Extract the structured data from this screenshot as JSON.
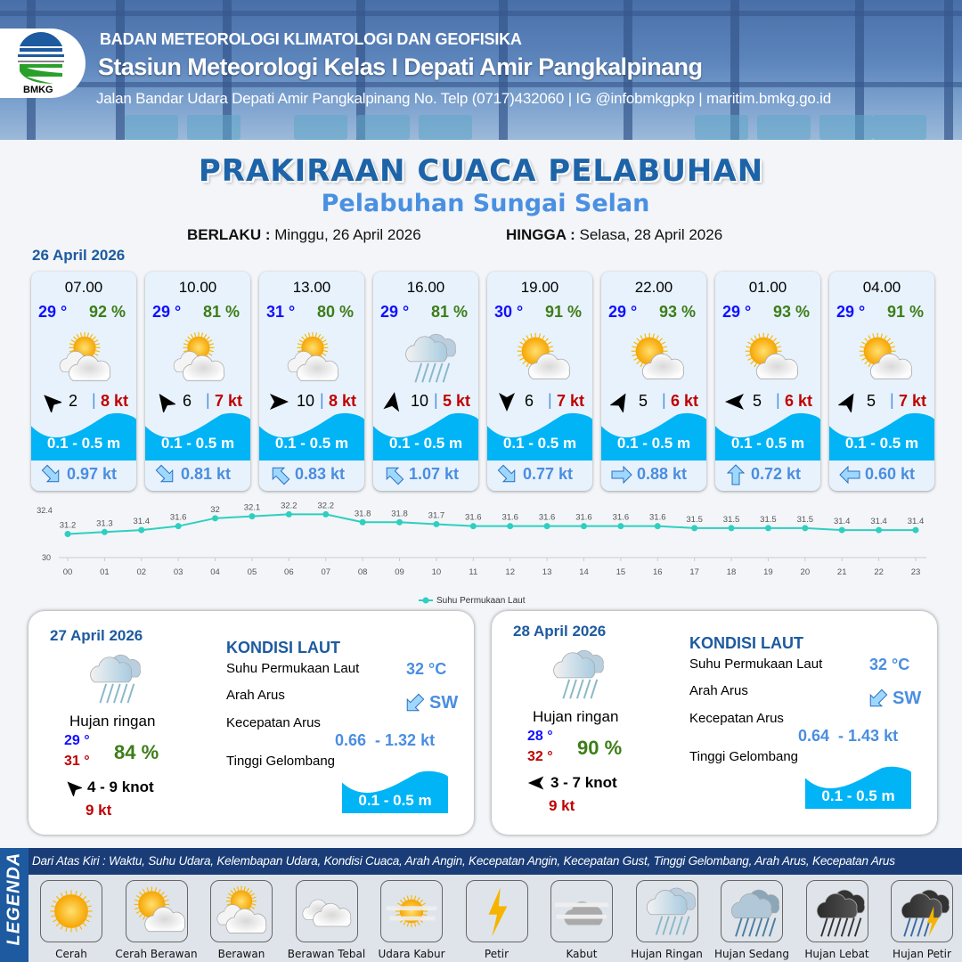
{
  "header": {
    "agency": "BADAN METEOROLOGI KLIMATOLOGI DAN GEOFISIKA",
    "station": "Stasiun Meteorologi Kelas I Depati Amir Pangkalpinang",
    "contact": "Jalan Bandar Udara Depati Amir Pangkalpinang No. Telp (0717)432060 | IG @infobmkgpkp | maritim.bmkg.go.id",
    "logo_text": "BMKG"
  },
  "title": "PRAKIRAAN CUACA PELABUHAN",
  "subtitle": "Pelabuhan Sungai Selan",
  "validity": {
    "from_label": "BERLAKU :",
    "from": "Minggu, 26 April 2026",
    "to_label": "HINGGA :",
    "to": "Selasa, 28 April 2026"
  },
  "day1": {
    "date": "26 April 2026",
    "cards": [
      {
        "time": "07.00",
        "temp": "29 °",
        "hum": "92 %",
        "weather": "berawan",
        "wind_dir_deg": 225,
        "wind": "2",
        "gust": "8 kt",
        "wave": "0.1 - 0.5 m",
        "current_dir_deg": 45,
        "current": "0.97 kt"
      },
      {
        "time": "10.00",
        "temp": "29 °",
        "hum": "81 %",
        "weather": "berawan",
        "wind_dir_deg": 235,
        "wind": "6",
        "gust": "7 kt",
        "wave": "0.1 - 0.5 m",
        "current_dir_deg": 45,
        "current": "0.81 kt"
      },
      {
        "time": "13.00",
        "temp": "31 °",
        "hum": "80 %",
        "weather": "berawan",
        "wind_dir_deg": 0,
        "wind": "10",
        "gust": "8 kt",
        "wave": "0.1 - 0.5 m",
        "current_dir_deg": 225,
        "current": "0.83 kt"
      },
      {
        "time": "16.00",
        "temp": "29 °",
        "hum": "81 %",
        "weather": "hujan-ringan",
        "wind_dir_deg": 280,
        "wind": "10",
        "gust": "5 kt",
        "wave": "0.1 - 0.5 m",
        "current_dir_deg": 225,
        "current": "1.07 kt"
      },
      {
        "time": "19.00",
        "temp": "30 °",
        "hum": "91 %",
        "weather": "cerah-berawan",
        "wind_dir_deg": 90,
        "wind": "6",
        "gust": "7 kt",
        "wave": "0.1 - 0.5 m",
        "current_dir_deg": 45,
        "current": "0.77 kt"
      },
      {
        "time": "22.00",
        "temp": "29 °",
        "hum": "93 %",
        "weather": "cerah-berawan",
        "wind_dir_deg": 300,
        "wind": "5",
        "gust": "6 kt",
        "wave": "0.1 - 0.5 m",
        "current_dir_deg": 0,
        "current": "0.88 kt"
      },
      {
        "time": "01.00",
        "temp": "29 °",
        "hum": "93 %",
        "weather": "cerah-berawan",
        "wind_dir_deg": 180,
        "wind": "5",
        "gust": "6 kt",
        "wave": "0.1 - 0.5 m",
        "current_dir_deg": 270,
        "current": "0.72 kt"
      },
      {
        "time": "04.00",
        "temp": "29 °",
        "hum": "91 %",
        "weather": "cerah-berawan",
        "wind_dir_deg": 300,
        "wind": "5",
        "gust": "7 kt",
        "wave": "0.1 - 0.5 m",
        "current_dir_deg": 180,
        "current": "0.60 kt"
      }
    ]
  },
  "chart_data": {
    "type": "line",
    "x": [
      "00",
      "01",
      "02",
      "03",
      "04",
      "05",
      "06",
      "07",
      "08",
      "09",
      "10",
      "11",
      "12",
      "13",
      "14",
      "15",
      "16",
      "17",
      "18",
      "19",
      "20",
      "21",
      "22",
      "23"
    ],
    "series": [
      {
        "name": "Suhu Permukaan Laut",
        "values": [
          31.2,
          31.3,
          31.4,
          31.6,
          32.0,
          32.1,
          32.2,
          32.2,
          31.8,
          31.8,
          31.7,
          31.6,
          31.6,
          31.6,
          31.6,
          31.6,
          31.6,
          31.5,
          31.5,
          31.5,
          31.5,
          31.4,
          31.4,
          31.4
        ],
        "color": "#2ecfc0"
      }
    ],
    "yticks": [
      "32.4",
      "30"
    ],
    "ylim": [
      30,
      32.4
    ],
    "legend": "bottom",
    "data_labels": true
  },
  "panels": [
    {
      "date": "27 April 2026",
      "weather": "hujan-ringan",
      "condition": "Hujan ringan",
      "tmin": "29 °",
      "tmax": "31 °",
      "hum": "84 %",
      "wind_dir_deg": 225,
      "wind": "4  - 9 knot",
      "gust": "9 kt",
      "sea_title": "KONDISI LAUT",
      "sst_label": "Suhu Permukaan Laut",
      "sst": "32 °C",
      "dir_label": "Arah Arus",
      "dir": "SW",
      "current_dir_deg": 135,
      "speed_label": "Kecepatan Arus",
      "speed": "0.66  - 1.32 kt",
      "wave_label": "Tinggi Gelombang",
      "wave": "0.1 - 0.5 m"
    },
    {
      "date": "28 April 2026",
      "weather": "hujan-ringan",
      "condition": "Hujan ringan",
      "tmin": "28 °",
      "tmax": "32 °",
      "hum": "90 %",
      "wind_dir_deg": 180,
      "wind": "3  - 7 knot",
      "gust": "9 kt",
      "sea_title": "KONDISI LAUT",
      "sst_label": "Suhu Permukaan Laut",
      "sst": "32 °C",
      "dir_label": "Arah Arus",
      "dir": "SW",
      "current_dir_deg": 135,
      "speed_label": "Kecepatan Arus",
      "speed": "0.64  - 1.43 kt",
      "wave_label": "Tinggi Gelombang",
      "wave": "0.1 - 0.5 m"
    }
  ],
  "legend": {
    "title": "LEGENDA",
    "description": "Dari Atas Kiri : Waktu, Suhu Udara, Kelembapan Udara, Kondisi Cuaca, Arah Angin, Kecepatan Angin, Kecepatan Gust, Tinggi Gelombang, Arah Arus, Kecepatan Arus",
    "items": [
      {
        "label": "Cerah",
        "icon": "cerah"
      },
      {
        "label": "Cerah Berawan",
        "icon": "cerah-berawan"
      },
      {
        "label": "Berawan",
        "icon": "berawan"
      },
      {
        "label": "Berawan Tebal",
        "icon": "berawan-tebal"
      },
      {
        "label": "Udara Kabur",
        "icon": "udara-kabur"
      },
      {
        "label": "Petir",
        "icon": "petir"
      },
      {
        "label": "Kabut",
        "icon": "kabut"
      },
      {
        "label": "Hujan Ringan",
        "icon": "hujan-ringan"
      },
      {
        "label": "Hujan Sedang",
        "icon": "hujan-sedang"
      },
      {
        "label": "Hujan Lebat",
        "icon": "hujan-lebat"
      },
      {
        "label": "Hujan Petir",
        "icon": "hujan-petir"
      }
    ]
  },
  "colors": {
    "title": "#1d63a8",
    "subtitle": "#4a90e2",
    "temp": "#1010ff",
    "humidity": "#3c7d18",
    "gust": "#c00000",
    "wave": "#00b4f6",
    "current": "#4a8ee0",
    "legend_bar": "#1a3d78"
  }
}
